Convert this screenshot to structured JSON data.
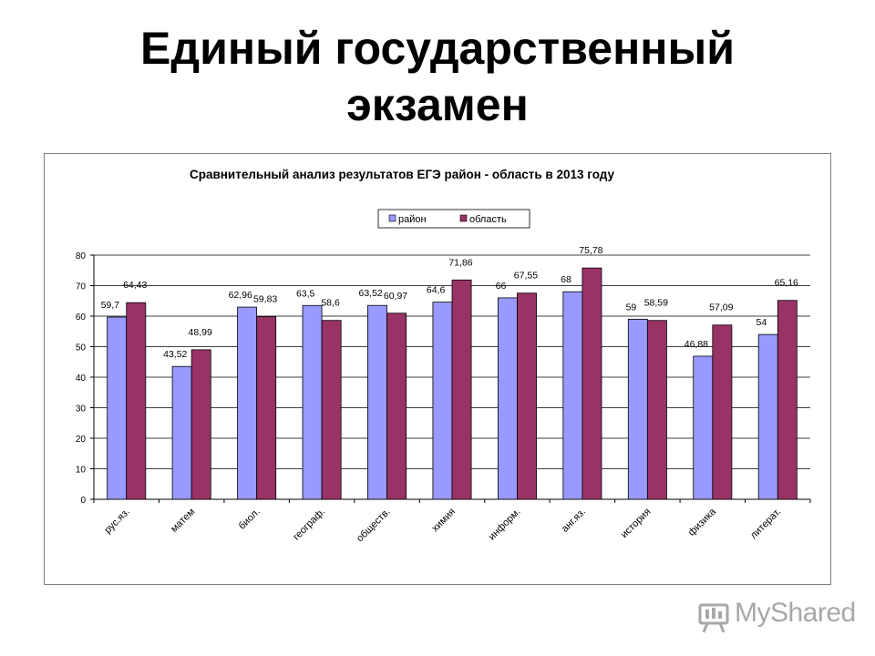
{
  "slide": {
    "title_line1": "Единый государственный",
    "title_line2": "экзамен"
  },
  "watermark": {
    "text": "MyShared",
    "icon": "presenter-board-logo-icon"
  },
  "chart_data": {
    "type": "bar",
    "title": "Сравнительный анализ результатов ЕГЭ  район - область в 2013 году",
    "categories": [
      "рус.яз.",
      "матем",
      "биол.",
      "географ.",
      "обществ.",
      "химия",
      "информ.",
      "анг.яз.",
      "история",
      "физика",
      "литерат."
    ],
    "series": [
      {
        "name": "район",
        "color": "#9999ff",
        "values": [
          59.7,
          43.52,
          62.96,
          63.5,
          63.52,
          64.6,
          66,
          68,
          59,
          46.88,
          54
        ],
        "labels": [
          "59,7",
          "43,52",
          "62,96",
          "63,5",
          "63,52",
          "64,6",
          "66",
          "68",
          "59",
          "46,88",
          "54"
        ]
      },
      {
        "name": "область",
        "color": "#993366",
        "values": [
          64.43,
          48.99,
          59.83,
          58.6,
          60.97,
          71.86,
          67.55,
          75.78,
          58.59,
          57.09,
          65.16
        ],
        "labels": [
          "64,43",
          "48,99",
          "59,83",
          "58,6",
          "60,97",
          "71,86",
          "67,55",
          "75,78",
          "58,59",
          "57,09",
          "65,16"
        ]
      }
    ],
    "ylim": [
      0,
      80
    ],
    "yticks": [
      "0",
      "10",
      "20",
      "30",
      "40",
      "50",
      "60",
      "70",
      "80"
    ],
    "grid": true,
    "legend": "top-center",
    "xlabel": "",
    "ylabel": ""
  }
}
